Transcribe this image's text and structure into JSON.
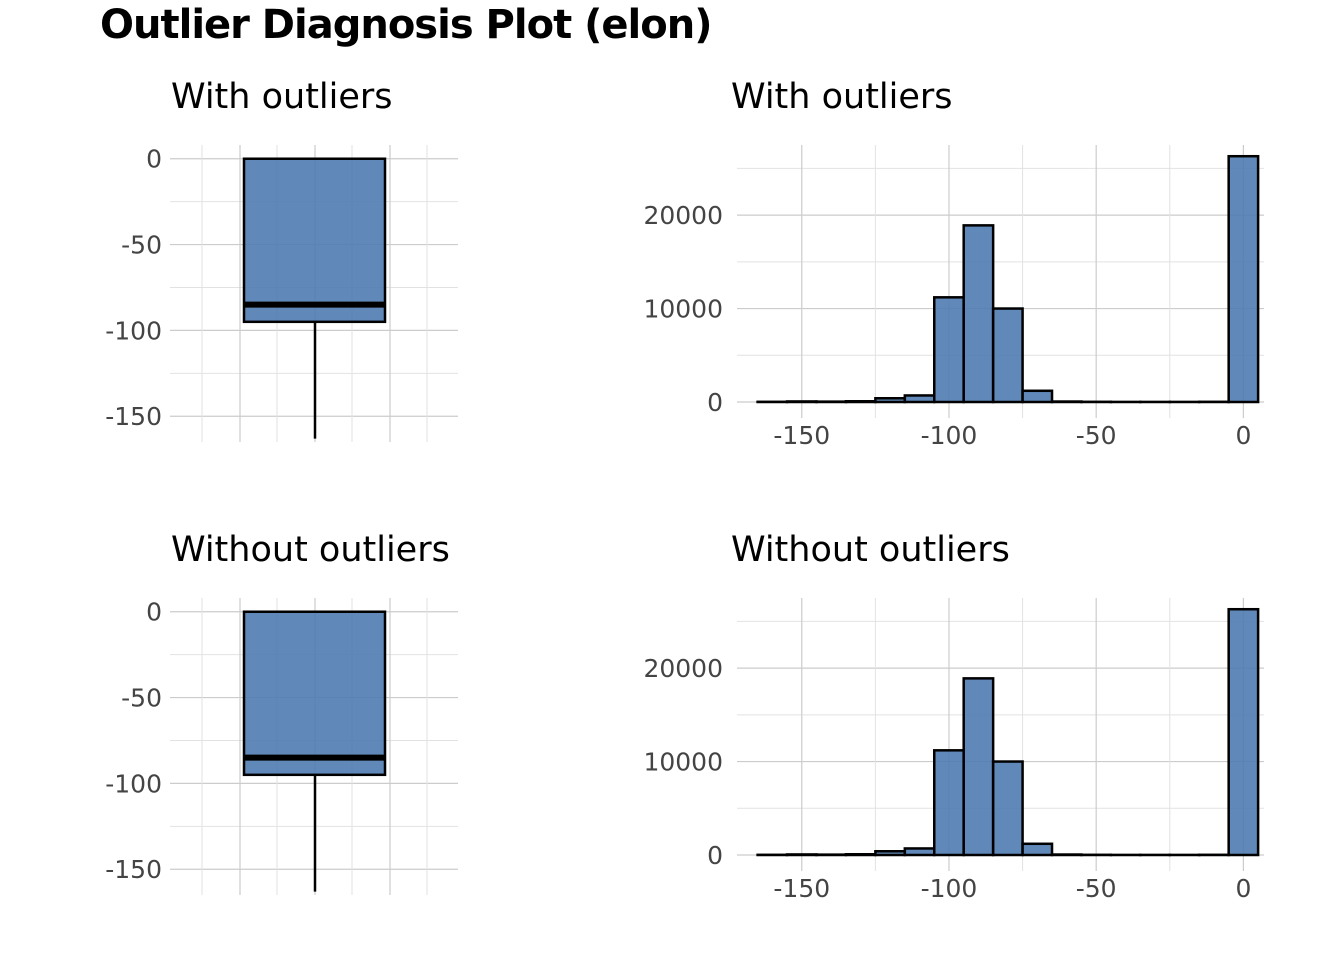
{
  "title": "Outlier Diagnosis Plot (elon)",
  "colors": {
    "fill": "#4f7bb0",
    "outline": "#000000",
    "grid": "#cccccc",
    "tick_text": "#444444"
  },
  "chart_data": [
    {
      "type": "boxplot",
      "title": "With outliers",
      "xlabel": "",
      "ylabel": "",
      "ylim": [
        -165,
        8
      ],
      "yticks": [
        0,
        -50,
        -100,
        -150
      ],
      "box": {
        "max": 0,
        "q3": 0,
        "median": -85,
        "q1": -95,
        "lower_whisker": -163
      },
      "grid": true
    },
    {
      "type": "bar",
      "title": "With outliers",
      "xlabel": "",
      "ylabel": "",
      "xlim": [
        -172,
        7
      ],
      "ylim": [
        0,
        27500
      ],
      "xticks": [
        -150,
        -100,
        -50,
        0
      ],
      "yticks": [
        0,
        10000,
        20000
      ],
      "bin_width": 10,
      "bins": [
        {
          "x": -160,
          "count": 20
        },
        {
          "x": -150,
          "count": 60
        },
        {
          "x": -140,
          "count": 40
        },
        {
          "x": -130,
          "count": 80
        },
        {
          "x": -120,
          "count": 400
        },
        {
          "x": -110,
          "count": 700
        },
        {
          "x": -100,
          "count": 11200
        },
        {
          "x": -90,
          "count": 18900
        },
        {
          "x": -80,
          "count": 10000
        },
        {
          "x": -70,
          "count": 1200
        },
        {
          "x": -60,
          "count": 50
        },
        {
          "x": -50,
          "count": 20
        },
        {
          "x": -40,
          "count": 10
        },
        {
          "x": -30,
          "count": 10
        },
        {
          "x": -20,
          "count": 10
        },
        {
          "x": -10,
          "count": 20
        },
        {
          "x": 0,
          "count": 26300
        }
      ],
      "grid": true
    },
    {
      "type": "boxplot",
      "title": "Without outliers",
      "xlabel": "",
      "ylabel": "",
      "ylim": [
        -165,
        8
      ],
      "yticks": [
        0,
        -50,
        -100,
        -150
      ],
      "box": {
        "max": 0,
        "q3": 0,
        "median": -85,
        "q1": -95,
        "lower_whisker": -163
      },
      "grid": true
    },
    {
      "type": "bar",
      "title": "Without outliers",
      "xlabel": "",
      "ylabel": "",
      "xlim": [
        -172,
        7
      ],
      "ylim": [
        0,
        27500
      ],
      "xticks": [
        -150,
        -100,
        -50,
        0
      ],
      "yticks": [
        0,
        10000,
        20000
      ],
      "bin_width": 10,
      "bins": [
        {
          "x": -160,
          "count": 20
        },
        {
          "x": -150,
          "count": 60
        },
        {
          "x": -140,
          "count": 40
        },
        {
          "x": -130,
          "count": 80
        },
        {
          "x": -120,
          "count": 400
        },
        {
          "x": -110,
          "count": 700
        },
        {
          "x": -100,
          "count": 11200
        },
        {
          "x": -90,
          "count": 18900
        },
        {
          "x": -80,
          "count": 10000
        },
        {
          "x": -70,
          "count": 1200
        },
        {
          "x": -60,
          "count": 50
        },
        {
          "x": -50,
          "count": 20
        },
        {
          "x": -40,
          "count": 10
        },
        {
          "x": -30,
          "count": 10
        },
        {
          "x": -20,
          "count": 10
        },
        {
          "x": -10,
          "count": 20
        },
        {
          "x": 0,
          "count": 26300
        }
      ],
      "grid": true
    }
  ]
}
